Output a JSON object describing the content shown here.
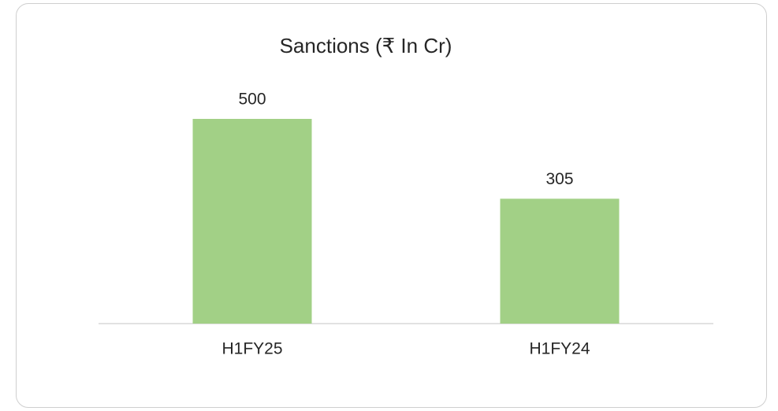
{
  "chart_data": {
    "type": "bar",
    "title": "Sanctions (₹ In Cr)",
    "categories": [
      "H1FY25",
      "H1FY24"
    ],
    "values": [
      500,
      305
    ],
    "color": "#a2d086"
  }
}
